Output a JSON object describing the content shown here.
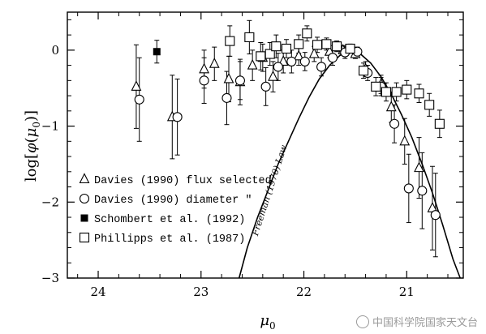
{
  "chart_data": {
    "type": "scatter",
    "xlabel": "μ0",
    "ylabel": "log[φ(μ0)]",
    "xlim": [
      24.3,
      20.45
    ],
    "ylim": [
      -3,
      0.5
    ],
    "x_ticks": [
      24,
      23,
      22,
      21
    ],
    "x_tick_labels": [
      "24",
      "23",
      "22",
      "21"
    ],
    "y_ticks": [
      0,
      -1,
      -2,
      -3
    ],
    "y_tick_labels": [
      "0",
      "−1",
      "−2",
      "−3"
    ],
    "x_reversed": true,
    "legend_position": "bottom-left",
    "curve_label": "Freeman (1970) Law",
    "series": [
      {
        "name": "Davies (1990) flux selected",
        "marker": "open-triangle",
        "points": [
          {
            "x": 23.63,
            "y": -0.48,
            "err": 0.55
          },
          {
            "x": 23.28,
            "y": -0.88,
            "err": 0.55
          },
          {
            "x": 22.97,
            "y": -0.25,
            "err": 0.25
          },
          {
            "x": 22.87,
            "y": -0.18,
            "err": 0.22
          },
          {
            "x": 22.73,
            "y": -0.38,
            "err": 0.3
          },
          {
            "x": 22.62,
            "y": -0.42,
            "err": 0.3
          },
          {
            "x": 22.5,
            "y": -0.2,
            "err": 0.2
          },
          {
            "x": 22.4,
            "y": -0.1,
            "err": 0.18
          },
          {
            "x": 22.3,
            "y": -0.35,
            "err": 0.2
          },
          {
            "x": 22.2,
            "y": -0.15,
            "err": 0.15
          },
          {
            "x": 22.05,
            "y": -0.08,
            "err": 0.12
          },
          {
            "x": 21.9,
            "y": -0.05,
            "err": 0.1
          },
          {
            "x": 21.75,
            "y": -0.02,
            "err": 0.08
          },
          {
            "x": 21.62,
            "y": 0.0,
            "err": 0.06
          },
          {
            "x": 21.5,
            "y": -0.05,
            "err": 0.06
          },
          {
            "x": 21.4,
            "y": -0.25,
            "err": 0.1
          },
          {
            "x": 21.25,
            "y": -0.45,
            "err": 0.12
          },
          {
            "x": 21.15,
            "y": -0.75,
            "err": 0.2
          },
          {
            "x": 21.02,
            "y": -1.2,
            "err": 0.3
          },
          {
            "x": 20.88,
            "y": -1.55,
            "err": 0.4
          },
          {
            "x": 20.75,
            "y": -2.08,
            "err": 0.55
          }
        ]
      },
      {
        "name": "Davies (1990) diameter \"",
        "marker": "open-circle",
        "points": [
          {
            "x": 23.6,
            "y": -0.65,
            "err": 0.55
          },
          {
            "x": 23.23,
            "y": -0.88,
            "err": 0.5
          },
          {
            "x": 22.97,
            "y": -0.4,
            "err": 0.3
          },
          {
            "x": 22.75,
            "y": -0.63,
            "err": 0.35
          },
          {
            "x": 22.62,
            "y": -0.4,
            "err": 0.25
          },
          {
            "x": 22.37,
            "y": -0.48,
            "err": 0.25
          },
          {
            "x": 22.25,
            "y": -0.22,
            "err": 0.18
          },
          {
            "x": 22.12,
            "y": -0.15,
            "err": 0.15
          },
          {
            "x": 21.99,
            "y": -0.15,
            "err": 0.12
          },
          {
            "x": 21.83,
            "y": -0.22,
            "err": 0.12
          },
          {
            "x": 21.72,
            "y": -0.1,
            "err": 0.1
          },
          {
            "x": 21.6,
            "y": -0.03,
            "err": 0.08
          },
          {
            "x": 21.48,
            "y": -0.02,
            "err": 0.06
          },
          {
            "x": 21.38,
            "y": -0.3,
            "err": 0.1
          },
          {
            "x": 21.25,
            "y": -0.48,
            "err": 0.12
          },
          {
            "x": 21.12,
            "y": -0.97,
            "err": 0.25
          },
          {
            "x": 20.98,
            "y": -1.82,
            "err": 0.45
          },
          {
            "x": 20.85,
            "y": -1.85,
            "err": 0.5
          },
          {
            "x": 20.72,
            "y": -2.17,
            "err": 0.55
          }
        ]
      },
      {
        "name": "Schombert et al. (1992)",
        "marker": "filled-square",
        "points": [
          {
            "x": 23.43,
            "y": -0.02,
            "err": 0.15
          }
        ]
      },
      {
        "name": "Phillipps et al. (1987)",
        "marker": "open-square",
        "points": [
          {
            "x": 22.72,
            "y": 0.12,
            "err": 0.2
          },
          {
            "x": 22.53,
            "y": 0.17,
            "err": 0.22
          },
          {
            "x": 22.42,
            "y": -0.08,
            "err": 0.18
          },
          {
            "x": 22.33,
            "y": -0.05,
            "err": 0.15
          },
          {
            "x": 22.27,
            "y": 0.05,
            "err": 0.15
          },
          {
            "x": 22.17,
            "y": 0.02,
            "err": 0.12
          },
          {
            "x": 22.05,
            "y": 0.08,
            "err": 0.12
          },
          {
            "x": 21.97,
            "y": 0.22,
            "err": 0.1
          },
          {
            "x": 21.87,
            "y": 0.07,
            "err": 0.1
          },
          {
            "x": 21.78,
            "y": 0.08,
            "err": 0.08
          },
          {
            "x": 21.68,
            "y": 0.05,
            "err": 0.07
          },
          {
            "x": 21.55,
            "y": 0.02,
            "err": 0.06
          },
          {
            "x": 21.42,
            "y": -0.27,
            "err": 0.1
          },
          {
            "x": 21.3,
            "y": -0.48,
            "err": 0.12
          },
          {
            "x": 21.2,
            "y": -0.55,
            "err": 0.12
          },
          {
            "x": 21.1,
            "y": -0.55,
            "err": 0.12
          },
          {
            "x": 21.0,
            "y": -0.52,
            "err": 0.12
          },
          {
            "x": 20.88,
            "y": -0.57,
            "err": 0.12
          },
          {
            "x": 20.78,
            "y": -0.72,
            "err": 0.15
          },
          {
            "x": 20.68,
            "y": -0.97,
            "err": 0.18
          }
        ]
      }
    ],
    "freeman_curve": [
      {
        "x": 22.63,
        "y": -3.0
      },
      {
        "x": 22.55,
        "y": -2.6
      },
      {
        "x": 22.45,
        "y": -2.2
      },
      {
        "x": 22.35,
        "y": -1.85
      },
      {
        "x": 22.25,
        "y": -1.5
      },
      {
        "x": 22.15,
        "y": -1.2
      },
      {
        "x": 22.05,
        "y": -0.9
      },
      {
        "x": 21.95,
        "y": -0.62
      },
      {
        "x": 21.85,
        "y": -0.38
      },
      {
        "x": 21.75,
        "y": -0.2
      },
      {
        "x": 21.65,
        "y": -0.07
      },
      {
        "x": 21.55,
        "y": 0.0
      },
      {
        "x": 21.45,
        "y": -0.05
      },
      {
        "x": 21.35,
        "y": -0.17
      },
      {
        "x": 21.25,
        "y": -0.35
      },
      {
        "x": 21.15,
        "y": -0.58
      },
      {
        "x": 21.05,
        "y": -0.85
      },
      {
        "x": 20.95,
        "y": -1.15
      },
      {
        "x": 20.85,
        "y": -1.5
      },
      {
        "x": 20.75,
        "y": -1.88
      },
      {
        "x": 20.65,
        "y": -2.3
      },
      {
        "x": 20.55,
        "y": -2.75
      },
      {
        "x": 20.48,
        "y": -3.0
      }
    ]
  },
  "watermark": {
    "text": "中国科学院国家天文台",
    "icon": "wechat-icon"
  }
}
